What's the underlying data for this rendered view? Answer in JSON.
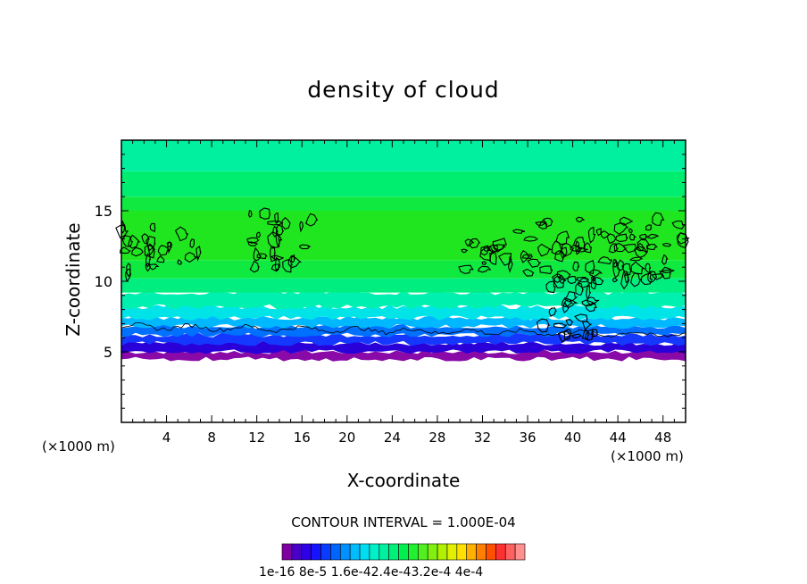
{
  "chart_data": {
    "type": "heatmap",
    "title": "density of cloud",
    "xlabel": "X-coordinate",
    "ylabel": "Z-coordinate",
    "x_unit_left": "(×1000 m)",
    "x_unit_right": "(×1000 m)",
    "xlim": [
      0,
      50
    ],
    "ylim": [
      0,
      20
    ],
    "xticks": [
      "4",
      "8",
      "12",
      "16",
      "20",
      "24",
      "28",
      "32",
      "36",
      "40",
      "44",
      "48"
    ],
    "yticks": [
      "5",
      "10",
      "15"
    ],
    "contour_interval_text": "CONTOUR INTERVAL = 1.000E-04",
    "colorbar": {
      "label_text": "1e-16 8e-5 1.6e-42.4e-43.2e-4 4e-4",
      "colors": [
        "#7f00a0",
        "#4b00c8",
        "#2d00e6",
        "#1414ff",
        "#0a3cff",
        "#0064ff",
        "#0090ff",
        "#00bcff",
        "#00dcf0",
        "#00f0c8",
        "#00f0a0",
        "#00f078",
        "#00f050",
        "#20f030",
        "#50f020",
        "#80f010",
        "#b0f000",
        "#e0f000",
        "#ffe000",
        "#ffb000",
        "#ff8000",
        "#ff5000",
        "#ff3030",
        "#ff6060",
        "#ff9090"
      ]
    },
    "field": [
      {
        "z": [
          0,
          4.5
        ],
        "color": "#ffffff"
      },
      {
        "z": [
          4.5,
          5.0
        ],
        "color": "#8a0aa8"
      },
      {
        "z": [
          5.0,
          5.6
        ],
        "color": "#2a00d8"
      },
      {
        "z": [
          5.6,
          6.2
        ],
        "color": "#1438ff"
      },
      {
        "z": [
          6.2,
          6.8
        ],
        "color": "#0070ff"
      },
      {
        "z": [
          6.8,
          7.4
        ],
        "color": "#00b8ff"
      },
      {
        "z": [
          7.4,
          8.2
        ],
        "color": "#00e4e8"
      },
      {
        "z": [
          8.2,
          9.2
        ],
        "color": "#00f0b0"
      },
      {
        "z": [
          9.2,
          10.2
        ],
        "color": "#00ee80"
      },
      {
        "z": [
          10.2,
          11.5
        ],
        "color": "#10ea40"
      },
      {
        "z": [
          11.5,
          15.0
        ],
        "color": "#20e620"
      },
      {
        "z": [
          15.0,
          16.0
        ],
        "color": "#10ea40"
      },
      {
        "z": [
          16.0,
          17.8
        ],
        "color": "#00ee70"
      },
      {
        "z": [
          17.8,
          20.0
        ],
        "color": "#00f0a0"
      }
    ],
    "cloud_top_z": 6.8,
    "cloud_regions": [
      {
        "x": [
          0,
          7
        ],
        "z": [
          10.5,
          13.8
        ]
      },
      {
        "x": [
          11,
          17
        ],
        "z": [
          11.0,
          14.8
        ]
      },
      {
        "x": [
          29.5,
          34.5
        ],
        "z": [
          10.8,
          13.5
        ]
      },
      {
        "x": [
          35,
          50
        ],
        "z": [
          10.0,
          14.5
        ]
      },
      {
        "x": [
          37,
          42
        ],
        "z": [
          6.0,
          10.5
        ]
      }
    ]
  }
}
